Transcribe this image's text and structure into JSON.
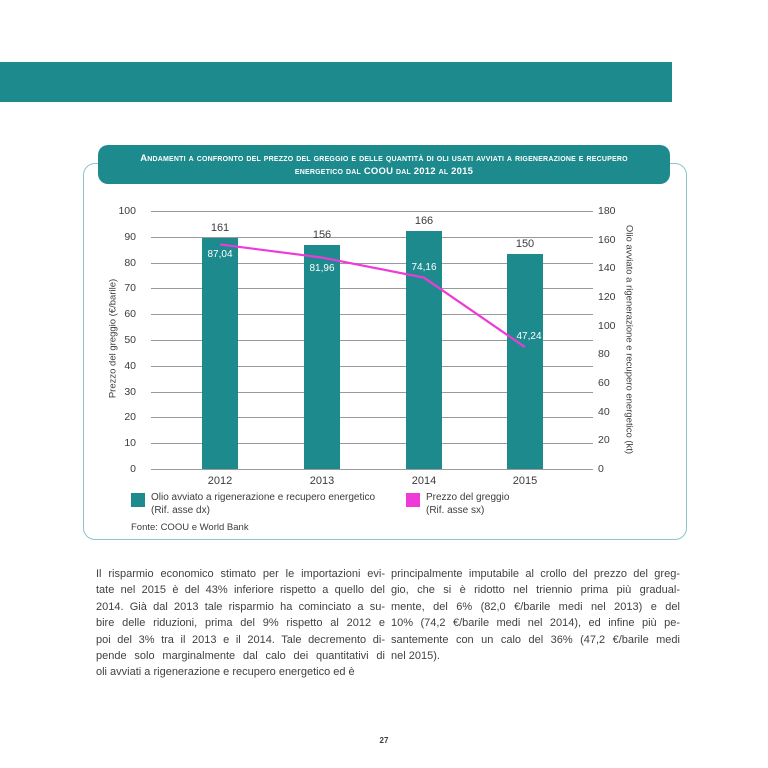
{
  "page": {
    "number": "27"
  },
  "theme": {
    "teal": "#1d8a8e",
    "magenta": "#ee3ad7",
    "panel_border": "#8cc5c8",
    "gridline": "#9a9a9a"
  },
  "chart_panel": {
    "title_lines": [
      "Andamenti a confronto del prezzo del greggio e delle quantità di oli usati avviati a rigenerazione e recupero",
      "energetico dal COOU dal 2012 al 2015"
    ],
    "legend": [
      {
        "label_line1": "Olio avviato a rigenerazione e recupero energetico",
        "label_line2": "(Rif. asse dx)",
        "color": "#1d8a8e"
      },
      {
        "label_line1": "Prezzo del greggio",
        "label_line2": "(Rif. asse sx)",
        "color": "#ee3ad7"
      }
    ],
    "source": "Fonte: COOU e World Bank"
  },
  "chart_data": {
    "type": "bar",
    "categories": [
      "2012",
      "2013",
      "2014",
      "2015"
    ],
    "series": [
      {
        "name": "Olio avviato a rigenerazione e recupero energetico (Rif. asse dx)",
        "type": "bar",
        "axis": "right",
        "color": "#1d8a8e",
        "values": [
          161,
          156,
          166,
          150
        ],
        "value_labels": [
          "161",
          "156",
          "166",
          "150"
        ]
      },
      {
        "name": "Prezzo del greggio (Rif. asse sx)",
        "type": "line",
        "axis": "left",
        "color": "#ee3ad7",
        "values": [
          87.04,
          81.96,
          74.16,
          47.24
        ],
        "value_labels": [
          "87,04",
          "81,96",
          "74,16",
          "47,24"
        ],
        "label_positions": [
          "below",
          "below",
          "above",
          "above"
        ]
      }
    ],
    "left_axis": {
      "label": "Prezzo del greggio (€/barile)",
      "min": 0,
      "max": 100,
      "step": 10
    },
    "right_axis": {
      "label": "Olio avviato a rigenerazione e recupero energetico (kt)",
      "min": 0,
      "max": 180,
      "step": 20
    },
    "grid": true,
    "legend_position": "bottom"
  },
  "body": {
    "left_column_lines": [
      "Il risparmio economico stimato per le importazioni evi-",
      "tate nel 2015 è del 43% inferiore rispetto a quello del",
      "2014. Già dal 2013 tale risparmio ha cominciato a su-",
      "bire delle riduzioni, prima del 9% rispetto al 2012 e",
      "poi del 3% tra il 2013 e il 2014. Tale decremento di-",
      "pende solo marginalmente dal calo dei quantitativi di",
      "oli avviati a rigenerazione e recupero energetico ed è"
    ],
    "right_column_lines": [
      "principalmente imputabile al crollo del prezzo del greg-",
      "gio, che si è ridotto nel triennio prima più gradual-",
      "mente, del 6% (82,0 €/barile medi nel 2013) e del",
      "10% (74,2 €/barile medi nel 2014), ed infine più pe-",
      "santemente con un calo del 36% (47,2 €/barile medi",
      "nel 2015)."
    ]
  }
}
